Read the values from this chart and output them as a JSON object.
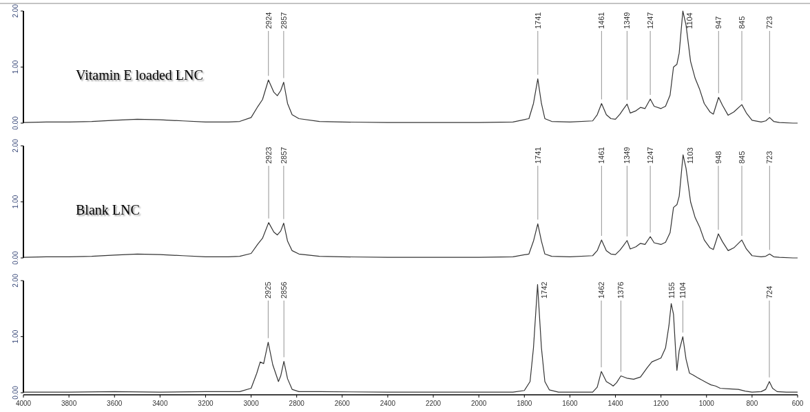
{
  "chart_data": [
    {
      "type": "line",
      "title": "Vitamin E loaded LNC",
      "color": "#333333",
      "tick_labels": "y",
      "xlim": [
        4000,
        600
      ],
      "ylim": [
        0,
        2
      ],
      "yticks": [
        {
          "value": 0,
          "label": "0.00"
        },
        {
          "value": 1,
          "label": "1.00"
        },
        {
          "value": 2,
          "label": "2.00"
        }
      ],
      "x": [
        4000,
        3900,
        3800,
        3700,
        3600,
        3500,
        3400,
        3300,
        3200,
        3100,
        3050,
        3000,
        2970,
        2950,
        2924,
        2900,
        2885,
        2870,
        2857,
        2840,
        2820,
        2790,
        2700,
        2600,
        2400,
        2200,
        2000,
        1850,
        1780,
        1760,
        1741,
        1725,
        1710,
        1680,
        1600,
        1500,
        1480,
        1461,
        1440,
        1420,
        1400,
        1380,
        1365,
        1349,
        1335,
        1310,
        1290,
        1270,
        1247,
        1230,
        1200,
        1180,
        1160,
        1145,
        1130,
        1120,
        1104,
        1090,
        1070,
        1050,
        1030,
        1010,
        985,
        970,
        947,
        930,
        905,
        880,
        845,
        825,
        800,
        760,
        740,
        723,
        705,
        680,
        620,
        600
      ],
      "values": [
        0.01,
        0.02,
        0.02,
        0.03,
        0.05,
        0.07,
        0.06,
        0.04,
        0.02,
        0.02,
        0.03,
        0.1,
        0.3,
        0.42,
        0.77,
        0.55,
        0.49,
        0.58,
        0.73,
        0.35,
        0.15,
        0.08,
        0.03,
        0.02,
        0.01,
        0.01,
        0.01,
        0.02,
        0.08,
        0.35,
        0.79,
        0.35,
        0.08,
        0.03,
        0.02,
        0.04,
        0.15,
        0.35,
        0.15,
        0.08,
        0.07,
        0.16,
        0.25,
        0.34,
        0.18,
        0.22,
        0.28,
        0.26,
        0.43,
        0.3,
        0.26,
        0.3,
        0.5,
        1.0,
        1.05,
        1.25,
        2.0,
        1.75,
        1.1,
        0.8,
        0.6,
        0.35,
        0.2,
        0.16,
        0.46,
        0.32,
        0.14,
        0.2,
        0.33,
        0.18,
        0.05,
        0.02,
        0.04,
        0.1,
        0.03,
        0.01,
        0.0,
        0.0
      ],
      "annotations": [
        {
          "text": "2924",
          "x": 2924,
          "y": 0.77
        },
        {
          "text": "2857",
          "x": 2857,
          "y": 0.73
        },
        {
          "text": "1741",
          "x": 1741,
          "y": 0.79
        },
        {
          "text": "1461",
          "x": 1461,
          "y": 0.35
        },
        {
          "text": "1349",
          "x": 1349,
          "y": 0.34
        },
        {
          "text": "1247",
          "x": 1247,
          "y": 0.43
        },
        {
          "text": "1104",
          "x": 1104,
          "y": 2.0
        },
        {
          "text": "947",
          "x": 947,
          "y": 0.46
        },
        {
          "text": "845",
          "x": 845,
          "y": 0.33
        },
        {
          "text": "723",
          "x": 723,
          "y": 0.1
        }
      ]
    },
    {
      "type": "line",
      "title": "Blank LNC",
      "color": "#333333",
      "tick_labels": "y",
      "xlim": [
        4000,
        600
      ],
      "ylim": [
        0,
        2
      ],
      "yticks": [
        {
          "value": 0,
          "label": "0.00"
        },
        {
          "value": 1,
          "label": "1.00"
        },
        {
          "value": 2,
          "label": "2.00"
        }
      ],
      "x": [
        4000,
        3900,
        3800,
        3700,
        3600,
        3500,
        3400,
        3300,
        3200,
        3100,
        3050,
        3000,
        2970,
        2950,
        2923,
        2900,
        2885,
        2870,
        2857,
        2840,
        2820,
        2790,
        2700,
        2600,
        2400,
        2200,
        2000,
        1850,
        1780,
        1760,
        1741,
        1725,
        1710,
        1680,
        1600,
        1500,
        1480,
        1461,
        1440,
        1420,
        1400,
        1380,
        1365,
        1349,
        1335,
        1310,
        1290,
        1270,
        1247,
        1230,
        1200,
        1180,
        1160,
        1145,
        1130,
        1120,
        1103,
        1090,
        1070,
        1050,
        1030,
        1010,
        985,
        970,
        948,
        930,
        905,
        880,
        845,
        825,
        800,
        760,
        740,
        723,
        705,
        680,
        620,
        600
      ],
      "values": [
        0.01,
        0.02,
        0.02,
        0.03,
        0.05,
        0.07,
        0.06,
        0.04,
        0.02,
        0.02,
        0.03,
        0.08,
        0.25,
        0.35,
        0.63,
        0.46,
        0.41,
        0.48,
        0.62,
        0.3,
        0.13,
        0.07,
        0.03,
        0.02,
        0.01,
        0.01,
        0.01,
        0.02,
        0.07,
        0.3,
        0.61,
        0.3,
        0.07,
        0.03,
        0.02,
        0.04,
        0.13,
        0.32,
        0.13,
        0.07,
        0.06,
        0.14,
        0.22,
        0.31,
        0.16,
        0.2,
        0.26,
        0.24,
        0.38,
        0.27,
        0.24,
        0.28,
        0.45,
        0.9,
        0.95,
        1.1,
        1.84,
        1.6,
        1.0,
        0.72,
        0.55,
        0.32,
        0.18,
        0.15,
        0.43,
        0.29,
        0.13,
        0.18,
        0.32,
        0.16,
        0.04,
        0.02,
        0.03,
        0.07,
        0.02,
        0.01,
        0.0,
        0.0
      ],
      "annotations": [
        {
          "text": "2923",
          "x": 2923,
          "y": 0.63
        },
        {
          "text": "2857",
          "x": 2857,
          "y": 0.62
        },
        {
          "text": "1741",
          "x": 1741,
          "y": 0.61
        },
        {
          "text": "1461",
          "x": 1461,
          "y": 0.32
        },
        {
          "text": "1349",
          "x": 1349,
          "y": 0.31
        },
        {
          "text": "1247",
          "x": 1247,
          "y": 0.38
        },
        {
          "text": "1103",
          "x": 1103,
          "y": 1.84
        },
        {
          "text": "948",
          "x": 948,
          "y": 0.43
        },
        {
          "text": "845",
          "x": 845,
          "y": 0.32
        },
        {
          "text": "723",
          "x": 723,
          "y": 0.07
        }
      ]
    },
    {
      "type": "line",
      "color": "#333333",
      "xlim": [
        4000,
        600
      ],
      "ylim": [
        0,
        2
      ],
      "yticks": [
        {
          "value": 0,
          "label": "0.00"
        },
        {
          "value": 1,
          "label": "1.00"
        },
        {
          "value": 2,
          "label": "2.00"
        }
      ],
      "xticks": [
        4000,
        3800,
        3600,
        3400,
        3200,
        3000,
        2800,
        2600,
        2400,
        2200,
        2000,
        1800,
        1600,
        1400,
        1200,
        1000,
        800,
        600
      ],
      "x": [
        4000,
        3800,
        3600,
        3400,
        3200,
        3050,
        3000,
        2975,
        2960,
        2945,
        2925,
        2905,
        2880,
        2870,
        2856,
        2840,
        2820,
        2790,
        2700,
        2400,
        2000,
        1850,
        1800,
        1775,
        1760,
        1742,
        1725,
        1710,
        1690,
        1650,
        1500,
        1480,
        1462,
        1440,
        1420,
        1410,
        1395,
        1376,
        1350,
        1320,
        1290,
        1260,
        1240,
        1200,
        1180,
        1165,
        1155,
        1145,
        1135,
        1130,
        1120,
        1104,
        1090,
        1075,
        1060,
        1040,
        1000,
        980,
        960,
        940,
        900,
        860,
        830,
        800,
        760,
        740,
        724,
        710,
        690,
        650,
        600
      ],
      "values": [
        0.01,
        0.01,
        0.02,
        0.01,
        0.02,
        0.02,
        0.08,
        0.35,
        0.55,
        0.52,
        0.9,
        0.5,
        0.2,
        0.3,
        0.56,
        0.25,
        0.06,
        0.02,
        0.02,
        0.01,
        0.01,
        0.01,
        0.04,
        0.2,
        0.8,
        1.93,
        0.8,
        0.2,
        0.05,
        0.01,
        0.01,
        0.1,
        0.38,
        0.2,
        0.15,
        0.12,
        0.18,
        0.3,
        0.26,
        0.24,
        0.28,
        0.45,
        0.55,
        0.62,
        0.8,
        1.2,
        1.59,
        1.4,
        0.7,
        0.4,
        0.75,
        1.0,
        0.6,
        0.35,
        0.32,
        0.27,
        0.18,
        0.14,
        0.12,
        0.08,
        0.07,
        0.06,
        0.03,
        0.01,
        0.02,
        0.06,
        0.2,
        0.08,
        0.02,
        0.01,
        0.01
      ],
      "annotations": [
        {
          "text": "2925",
          "x": 2925,
          "y": 0.9
        },
        {
          "text": "2856",
          "x": 2856,
          "y": 0.56
        },
        {
          "text": "1742",
          "x": 1742,
          "y": 1.93
        },
        {
          "text": "1462",
          "x": 1462,
          "y": 0.38
        },
        {
          "text": "1376",
          "x": 1376,
          "y": 0.3
        },
        {
          "text": "1155",
          "x": 1155,
          "y": 1.59
        },
        {
          "text": "1104",
          "x": 1104,
          "y": 1.0
        },
        {
          "text": "724",
          "x": 724,
          "y": 0.2
        }
      ]
    }
  ]
}
